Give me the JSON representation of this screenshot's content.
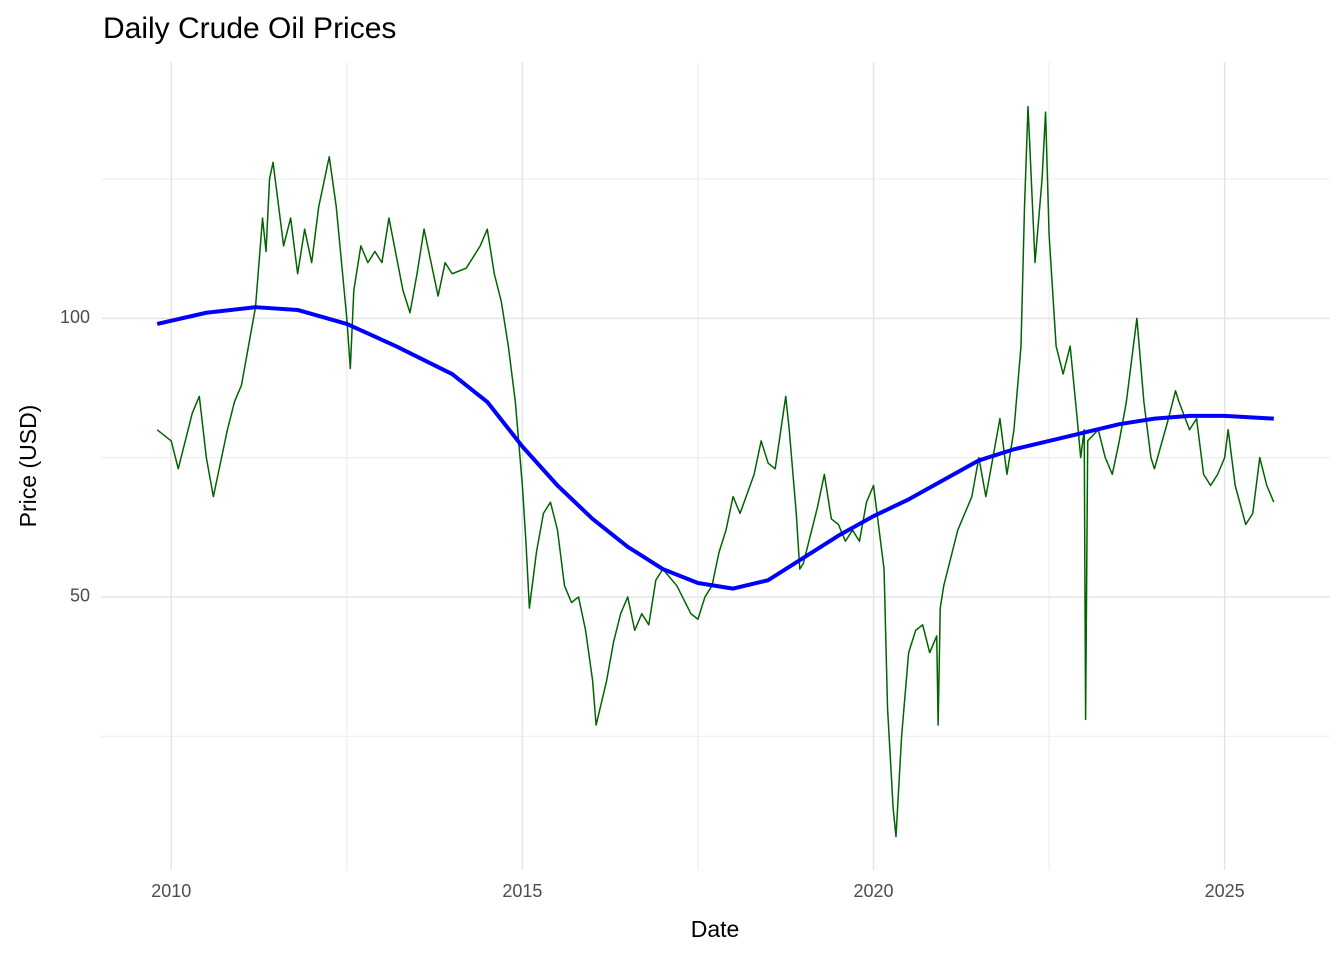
{
  "chart_data": {
    "type": "line",
    "title": "Daily Crude Oil Prices",
    "x_label": "Date",
    "y_label": "Price (USD)",
    "xlim": [
      2009,
      2026.5
    ],
    "xticks": [
      2010,
      2015,
      2020,
      2025
    ],
    "minor_xticks": [
      2012.5,
      2017.5,
      2022.5
    ],
    "ylim": [
      1,
      146
    ],
    "yticks": [
      50,
      100
    ],
    "minor_yticks": [
      25,
      75,
      125
    ],
    "grid": true,
    "series": [
      {
        "color": "#006400",
        "width": 1.5,
        "x": [
          2009.8,
          2010.0,
          2010.1,
          2010.3,
          2010.4,
          2010.5,
          2010.6,
          2010.8,
          2010.9,
          2011.0,
          2011.1,
          2011.2,
          2011.3,
          2011.35,
          2011.4,
          2011.45,
          2011.6,
          2011.7,
          2011.8,
          2011.9,
          2012.0,
          2012.1,
          2012.2,
          2012.25,
          2012.35,
          2012.5,
          2012.55,
          2012.6,
          2012.7,
          2012.8,
          2012.9,
          2013.0,
          2013.1,
          2013.3,
          2013.4,
          2013.5,
          2013.6,
          2013.7,
          2013.8,
          2013.9,
          2014.0,
          2014.2,
          2014.4,
          2014.5,
          2014.6,
          2014.7,
          2014.8,
          2014.9,
          2015.0,
          2015.05,
          2015.1,
          2015.2,
          2015.3,
          2015.4,
          2015.5,
          2015.6,
          2015.7,
          2015.8,
          2015.9,
          2016.0,
          2016.05,
          2016.2,
          2016.3,
          2016.4,
          2016.5,
          2016.6,
          2016.7,
          2016.8,
          2016.9,
          2017.0,
          2017.2,
          2017.4,
          2017.5,
          2017.6,
          2017.7,
          2017.8,
          2017.9,
          2018.0,
          2018.1,
          2018.3,
          2018.4,
          2018.5,
          2018.6,
          2018.75,
          2018.8,
          2018.9,
          2018.95,
          2019.0,
          2019.2,
          2019.3,
          2019.4,
          2019.5,
          2019.6,
          2019.7,
          2019.8,
          2019.9,
          2020.0,
          2020.05,
          2020.15,
          2020.2,
          2020.28,
          2020.32,
          2020.4,
          2020.5,
          2020.6,
          2020.7,
          2020.8,
          2020.9,
          2020.92,
          2020.95,
          2021.0,
          2021.2,
          2021.4,
          2021.5,
          2021.6,
          2021.8,
          2021.9,
          2022.0,
          2022.1,
          2022.15,
          2022.2,
          2022.3,
          2022.4,
          2022.45,
          2022.5,
          2022.6,
          2022.7,
          2022.8,
          2022.9,
          2022.95,
          2023.0,
          2023.02,
          2023.05,
          2023.2,
          2023.3,
          2023.4,
          2023.5,
          2023.6,
          2023.7,
          2023.75,
          2023.85,
          2023.95,
          2024.0,
          2024.2,
          2024.3,
          2024.35,
          2024.5,
          2024.6,
          2024.7,
          2024.8,
          2024.9,
          2025.0,
          2025.05,
          2025.15,
          2025.3,
          2025.4,
          2025.5,
          2025.6,
          2025.7
        ],
        "values": [
          80,
          78,
          73,
          83,
          86,
          75,
          68,
          80,
          85,
          88,
          95,
          102,
          118,
          112,
          125,
          128,
          113,
          118,
          108,
          116,
          110,
          120,
          126,
          129,
          120,
          100,
          91,
          105,
          113,
          110,
          112,
          110,
          118,
          105,
          101,
          108,
          116,
          110,
          104,
          110,
          108,
          109,
          113,
          116,
          108,
          103,
          95,
          85,
          70,
          60,
          48,
          58,
          65,
          67,
          62,
          52,
          49,
          50,
          44,
          35,
          27,
          35,
          42,
          47,
          50,
          44,
          47,
          45,
          53,
          55,
          52,
          47,
          46,
          50,
          52,
          58,
          62,
          68,
          65,
          72,
          78,
          74,
          73,
          86,
          80,
          65,
          55,
          56,
          66,
          72,
          64,
          63,
          60,
          62,
          60,
          67,
          70,
          65,
          55,
          30,
          12,
          7,
          25,
          40,
          44,
          45,
          40,
          43,
          27,
          48,
          52,
          62,
          68,
          75,
          68,
          82,
          72,
          80,
          95,
          120,
          138,
          110,
          125,
          137,
          115,
          95,
          90,
          95,
          82,
          75,
          80,
          28,
          78,
          80,
          75,
          72,
          78,
          85,
          95,
          100,
          85,
          75,
          73,
          82,
          87,
          85,
          80,
          82,
          72,
          70,
          72,
          75,
          80,
          70,
          63,
          65,
          75,
          70,
          67
        ]
      },
      {
        "color": "#0000ff",
        "width": 4,
        "x": [
          2009.8,
          2010.5,
          2011.2,
          2011.8,
          2012.5,
          2013.2,
          2014.0,
          2014.5,
          2015.0,
          2015.5,
          2016.0,
          2016.5,
          2017.0,
          2017.5,
          2018.0,
          2018.5,
          2019.0,
          2019.5,
          2020.0,
          2020.5,
          2021.0,
          2021.5,
          2022.0,
          2022.5,
          2023.0,
          2023.5,
          2024.0,
          2024.5,
          2025.0,
          2025.7
        ],
        "values": [
          99,
          101,
          102,
          101.5,
          99,
          95,
          90,
          85,
          77,
          70,
          64,
          59,
          55,
          52.5,
          51.5,
          53,
          57,
          61,
          64.5,
          67.5,
          71,
          74.5,
          76.5,
          78,
          79.5,
          81,
          82,
          82.5,
          82.5,
          82
        ]
      }
    ]
  }
}
